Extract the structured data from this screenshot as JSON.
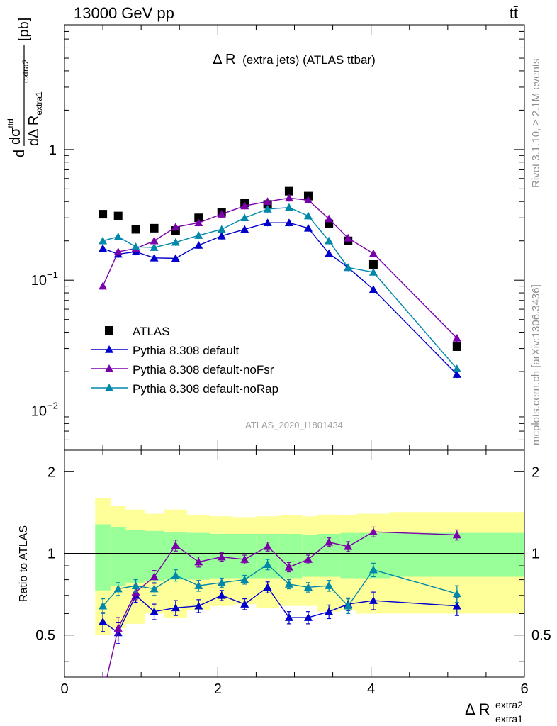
{
  "header": {
    "energy_label": "13000 GeV pp",
    "process_label": "tt̄"
  },
  "side_labels": {
    "rivet": "Rivet 3.1.10, ≥ 2.1M events",
    "mcplots": "mcplots.cern.ch [arXiv:1306.3436]"
  },
  "main_plot": {
    "title_main": "Δ R",
    "title_rest": "(extra jets) (ATLAS ttbar)",
    "watermark": "ATLAS_2020_I1801434",
    "ylabel": {
      "d": "d",
      "sigma": "dσ",
      "sigma_sup": "ttd",
      "den": "dΔ R",
      "den_sub": "extra1",
      "den_sup": "extra2",
      "unit": "[pb]"
    },
    "y_ticks": [
      {
        "value": 1,
        "label": "1",
        "exp": ""
      },
      {
        "value": 0.1,
        "label": "10",
        "exp": "−1"
      },
      {
        "value": 0.01,
        "label": "10",
        "exp": "−2"
      }
    ]
  },
  "ratio_plot": {
    "ylabel": "Ratio to ATLAS",
    "y_ticks": [
      {
        "value": 0.5,
        "label": "0.5"
      },
      {
        "value": 1,
        "label": "1"
      },
      {
        "value": 2,
        "label": "2"
      }
    ]
  },
  "x_axis": {
    "label_main": "Δ R",
    "label_sub": "extra1",
    "label_sup": "extra2",
    "ticks": [
      {
        "value": 0,
        "label": "0"
      },
      {
        "value": 2,
        "label": "2"
      },
      {
        "value": 4,
        "label": "4"
      },
      {
        "value": 6,
        "label": "6"
      }
    ]
  },
  "colors": {
    "atlas": "#000000",
    "default": "#0000cc",
    "noFsr": "#7a00aa",
    "noRap": "#0088aa",
    "band_outer": "#ffff99",
    "band_inner": "#99ff99"
  },
  "legend": [
    {
      "key": "atlas",
      "label": "ATLAS"
    },
    {
      "key": "default",
      "label": "Pythia 8.308 default"
    },
    {
      "key": "noFsr",
      "label": "Pythia 8.308 default-noFsr"
    },
    {
      "key": "noRap",
      "label": "Pythia 8.308 default-noRap"
    }
  ],
  "chart_data": {
    "type": "line",
    "xlabel": "Δ R extra1 extra2",
    "ylabel": "dσ/dΔR [pb]",
    "xlim": [
      0,
      6
    ],
    "ylim_main": [
      0.005,
      9
    ],
    "ylim_ratio": [
      0.35,
      2.4
    ],
    "y_scale": "log",
    "bins": [
      {
        "lo": 0.4,
        "hi": 0.6
      },
      {
        "lo": 0.6,
        "hi": 0.8
      },
      {
        "lo": 0.8,
        "hi": 1.05
      },
      {
        "lo": 1.05,
        "hi": 1.3
      },
      {
        "lo": 1.3,
        "hi": 1.6
      },
      {
        "lo": 1.6,
        "hi": 1.9
      },
      {
        "lo": 1.9,
        "hi": 2.2
      },
      {
        "lo": 2.2,
        "hi": 2.5
      },
      {
        "lo": 2.5,
        "hi": 2.8
      },
      {
        "lo": 2.8,
        "hi": 3.1
      },
      {
        "lo": 3.1,
        "hi": 3.3
      },
      {
        "lo": 3.3,
        "hi": 3.6
      },
      {
        "lo": 3.6,
        "hi": 3.8
      },
      {
        "lo": 3.8,
        "hi": 4.25
      },
      {
        "lo": 4.25,
        "hi": 6.0
      }
    ],
    "x": [
      0.5,
      0.7,
      0.93,
      1.17,
      1.45,
      1.75,
      2.05,
      2.35,
      2.65,
      2.93,
      3.18,
      3.45,
      3.7,
      4.03,
      5.12
    ],
    "band_outer": [
      [
        0.5,
        1.6
      ],
      [
        0.53,
        1.5
      ],
      [
        0.55,
        1.45
      ],
      [
        0.6,
        1.4
      ],
      [
        0.58,
        1.45
      ],
      [
        0.62,
        1.38
      ],
      [
        0.64,
        1.37
      ],
      [
        0.65,
        1.36
      ],
      [
        0.63,
        1.37
      ],
      [
        0.64,
        1.38
      ],
      [
        0.64,
        1.37
      ],
      [
        0.61,
        1.39
      ],
      [
        0.62,
        1.38
      ],
      [
        0.6,
        1.4
      ],
      [
        0.6,
        1.42
      ]
    ],
    "band_inner": [
      [
        0.73,
        1.28
      ],
      [
        0.76,
        1.25
      ],
      [
        0.78,
        1.22
      ],
      [
        0.79,
        1.21
      ],
      [
        0.8,
        1.2
      ],
      [
        0.8,
        1.19
      ],
      [
        0.81,
        1.18
      ],
      [
        0.81,
        1.18
      ],
      [
        0.81,
        1.18
      ],
      [
        0.81,
        1.18
      ],
      [
        0.82,
        1.17
      ],
      [
        0.82,
        1.18
      ],
      [
        0.81,
        1.19
      ],
      [
        0.81,
        1.19
      ],
      [
        0.82,
        1.19
      ]
    ],
    "series": [
      {
        "name": "ATLAS",
        "key": "atlas",
        "values": [
          0.32,
          0.31,
          0.245,
          0.25,
          0.24,
          0.3,
          0.33,
          0.39,
          0.38,
          0.48,
          0.44,
          0.27,
          0.2,
          0.132,
          0.031
        ]
      },
      {
        "name": "Pythia 8.308 default",
        "key": "default",
        "values": [
          0.175,
          0.158,
          0.165,
          0.148,
          0.147,
          0.185,
          0.218,
          0.245,
          0.275,
          0.275,
          0.25,
          0.16,
          0.125,
          0.085,
          0.019
        ],
        "ratio": [
          0.56,
          0.51,
          0.7,
          0.61,
          0.63,
          0.64,
          0.7,
          0.65,
          0.75,
          0.58,
          0.58,
          0.61,
          0.65,
          0.67,
          0.64
        ],
        "ratio_err": [
          0.045,
          0.045,
          0.04,
          0.04,
          0.04,
          0.035,
          0.03,
          0.03,
          0.035,
          0.03,
          0.03,
          0.035,
          0.035,
          0.05,
          0.05
        ]
      },
      {
        "name": "Pythia 8.308 default-noFsr",
        "key": "noFsr",
        "values": [
          0.09,
          0.165,
          0.175,
          0.2,
          0.255,
          0.275,
          0.32,
          0.37,
          0.4,
          0.425,
          0.41,
          0.295,
          0.21,
          0.16,
          0.036
        ],
        "ratio": [
          0.3,
          0.53,
          0.72,
          0.82,
          1.07,
          0.93,
          0.97,
          0.95,
          1.06,
          0.89,
          0.95,
          1.1,
          1.06,
          1.2,
          1.17
        ],
        "ratio_err": [
          0.05,
          0.05,
          0.045,
          0.045,
          0.05,
          0.04,
          0.035,
          0.035,
          0.04,
          0.035,
          0.035,
          0.04,
          0.045,
          0.05,
          0.05
        ]
      },
      {
        "name": "Pythia 8.308 default-noRap",
        "key": "noRap",
        "values": [
          0.2,
          0.215,
          0.18,
          0.178,
          0.195,
          0.22,
          0.245,
          0.3,
          0.35,
          0.36,
          0.31,
          0.2,
          0.125,
          0.115,
          0.021
        ],
        "ratio": [
          0.64,
          0.74,
          0.76,
          0.74,
          0.83,
          0.76,
          0.78,
          0.8,
          0.91,
          0.77,
          0.75,
          0.76,
          0.64,
          0.87,
          0.71
        ],
        "ratio_err": [
          0.04,
          0.04,
          0.04,
          0.04,
          0.04,
          0.035,
          0.03,
          0.03,
          0.04,
          0.03,
          0.03,
          0.035,
          0.04,
          0.05,
          0.05
        ]
      }
    ]
  }
}
